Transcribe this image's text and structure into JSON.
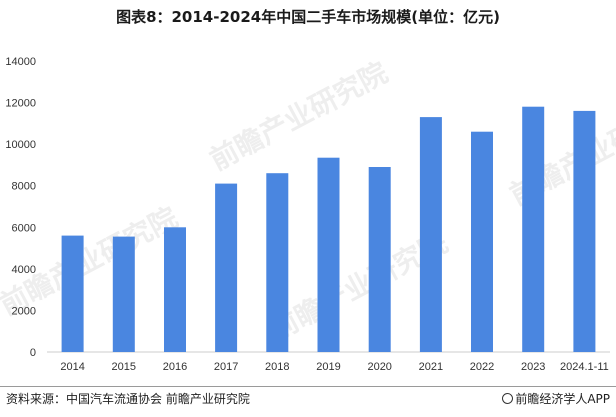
{
  "title": "图表8：2014-2024年中国二手车市场规模(单位：亿元)",
  "footer": {
    "source": "资料来源：中国汽车流通协会 前瞻产业研究院",
    "brand": "前瞻经济学人APP"
  },
  "watermark": "前瞻产业研究院",
  "colors": {
    "bar": "#4a86e0",
    "axis": "#cccccc",
    "text": "#333333"
  },
  "chart_data": {
    "type": "bar",
    "title": "图表8：2014-2024年中国二手车市场规模(单位：亿元)",
    "xlabel": "",
    "ylabel": "",
    "categories": [
      "2014",
      "2015",
      "2016",
      "2017",
      "2018",
      "2019",
      "2020",
      "2021",
      "2022",
      "2023",
      "2024.1-11"
    ],
    "values": [
      5600,
      5550,
      6000,
      8100,
      8600,
      9350,
      8900,
      11300,
      10600,
      11800,
      11600
    ],
    "ylim": [
      0,
      14000
    ],
    "yticks": [
      0,
      2000,
      4000,
      6000,
      8000,
      10000,
      12000,
      14000
    ],
    "grid": false,
    "legend": "none"
  }
}
